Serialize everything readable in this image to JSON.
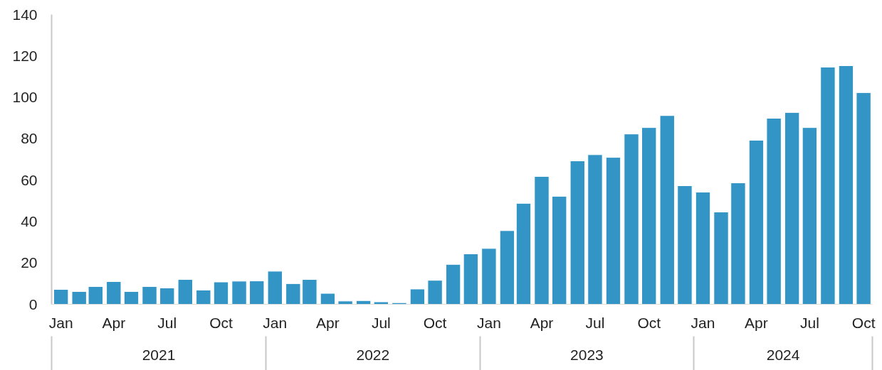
{
  "chart_data": {
    "type": "bar",
    "x": [
      "2021-01",
      "2021-02",
      "2021-03",
      "2021-04",
      "2021-05",
      "2021-06",
      "2021-07",
      "2021-08",
      "2021-09",
      "2021-10",
      "2021-11",
      "2021-12",
      "2022-01",
      "2022-02",
      "2022-03",
      "2022-04",
      "2022-05",
      "2022-06",
      "2022-07",
      "2022-08",
      "2022-09",
      "2022-10",
      "2022-11",
      "2022-12",
      "2023-01",
      "2023-02",
      "2023-03",
      "2023-04",
      "2023-05",
      "2023-06",
      "2023-07",
      "2023-08",
      "2023-09",
      "2023-10",
      "2023-11",
      "2023-12",
      "2024-01",
      "2024-02",
      "2024-03",
      "2024-04",
      "2024-05",
      "2024-06",
      "2024-07",
      "2024-08",
      "2024-09",
      "2024-10"
    ],
    "series": [
      {
        "color": "#3395c6",
        "values": [
          7.2,
          6.2,
          8.6,
          11,
          6.2,
          8.6,
          7.9,
          12,
          6.9,
          10.8,
          11.2,
          11.3,
          16,
          10,
          12,
          5.3,
          1.6,
          1.8,
          1.2,
          0.8,
          7.4,
          11.6,
          19.3,
          24.4,
          27,
          35.6,
          48.8,
          61.8,
          52.2,
          69.3,
          72.3,
          71,
          82.3,
          85.4,
          91.2,
          57.3,
          54.2,
          44.6,
          58.7,
          79.3,
          89.9,
          92.7,
          85.4,
          114.6,
          115.3,
          102.3
        ]
      }
    ],
    "xlim": [
      "2020-12-16",
      "2024-10-16"
    ],
    "xticks": [
      {
        "value": "2021-01",
        "label": "Jan"
      },
      {
        "value": "2021-04",
        "label": "Apr"
      },
      {
        "value": "2021-07",
        "label": "Jul"
      },
      {
        "value": "2021-10",
        "label": "Oct"
      },
      {
        "value": "2022-01",
        "label": "Jan"
      },
      {
        "value": "2022-04",
        "label": "Apr"
      },
      {
        "value": "2022-07",
        "label": "Jul"
      },
      {
        "value": "2022-10",
        "label": "Oct"
      },
      {
        "value": "2023-01",
        "label": "Jan"
      },
      {
        "value": "2023-04",
        "label": "Apr"
      },
      {
        "value": "2023-07",
        "label": "Jul"
      },
      {
        "value": "2023-10",
        "label": "Oct"
      },
      {
        "value": "2024-01",
        "label": "Jan"
      },
      {
        "value": "2024-04",
        "label": "Apr"
      },
      {
        "value": "2024-07",
        "label": "Jul"
      },
      {
        "value": "2024-10",
        "label": "Oct"
      }
    ],
    "annotations": [
      "2021",
      "2022",
      "2023",
      "2024"
    ],
    "ylim": [
      0,
      140
    ],
    "yticks": [
      0,
      20,
      40,
      60,
      80,
      100,
      120,
      140
    ],
    "grid": false
  }
}
